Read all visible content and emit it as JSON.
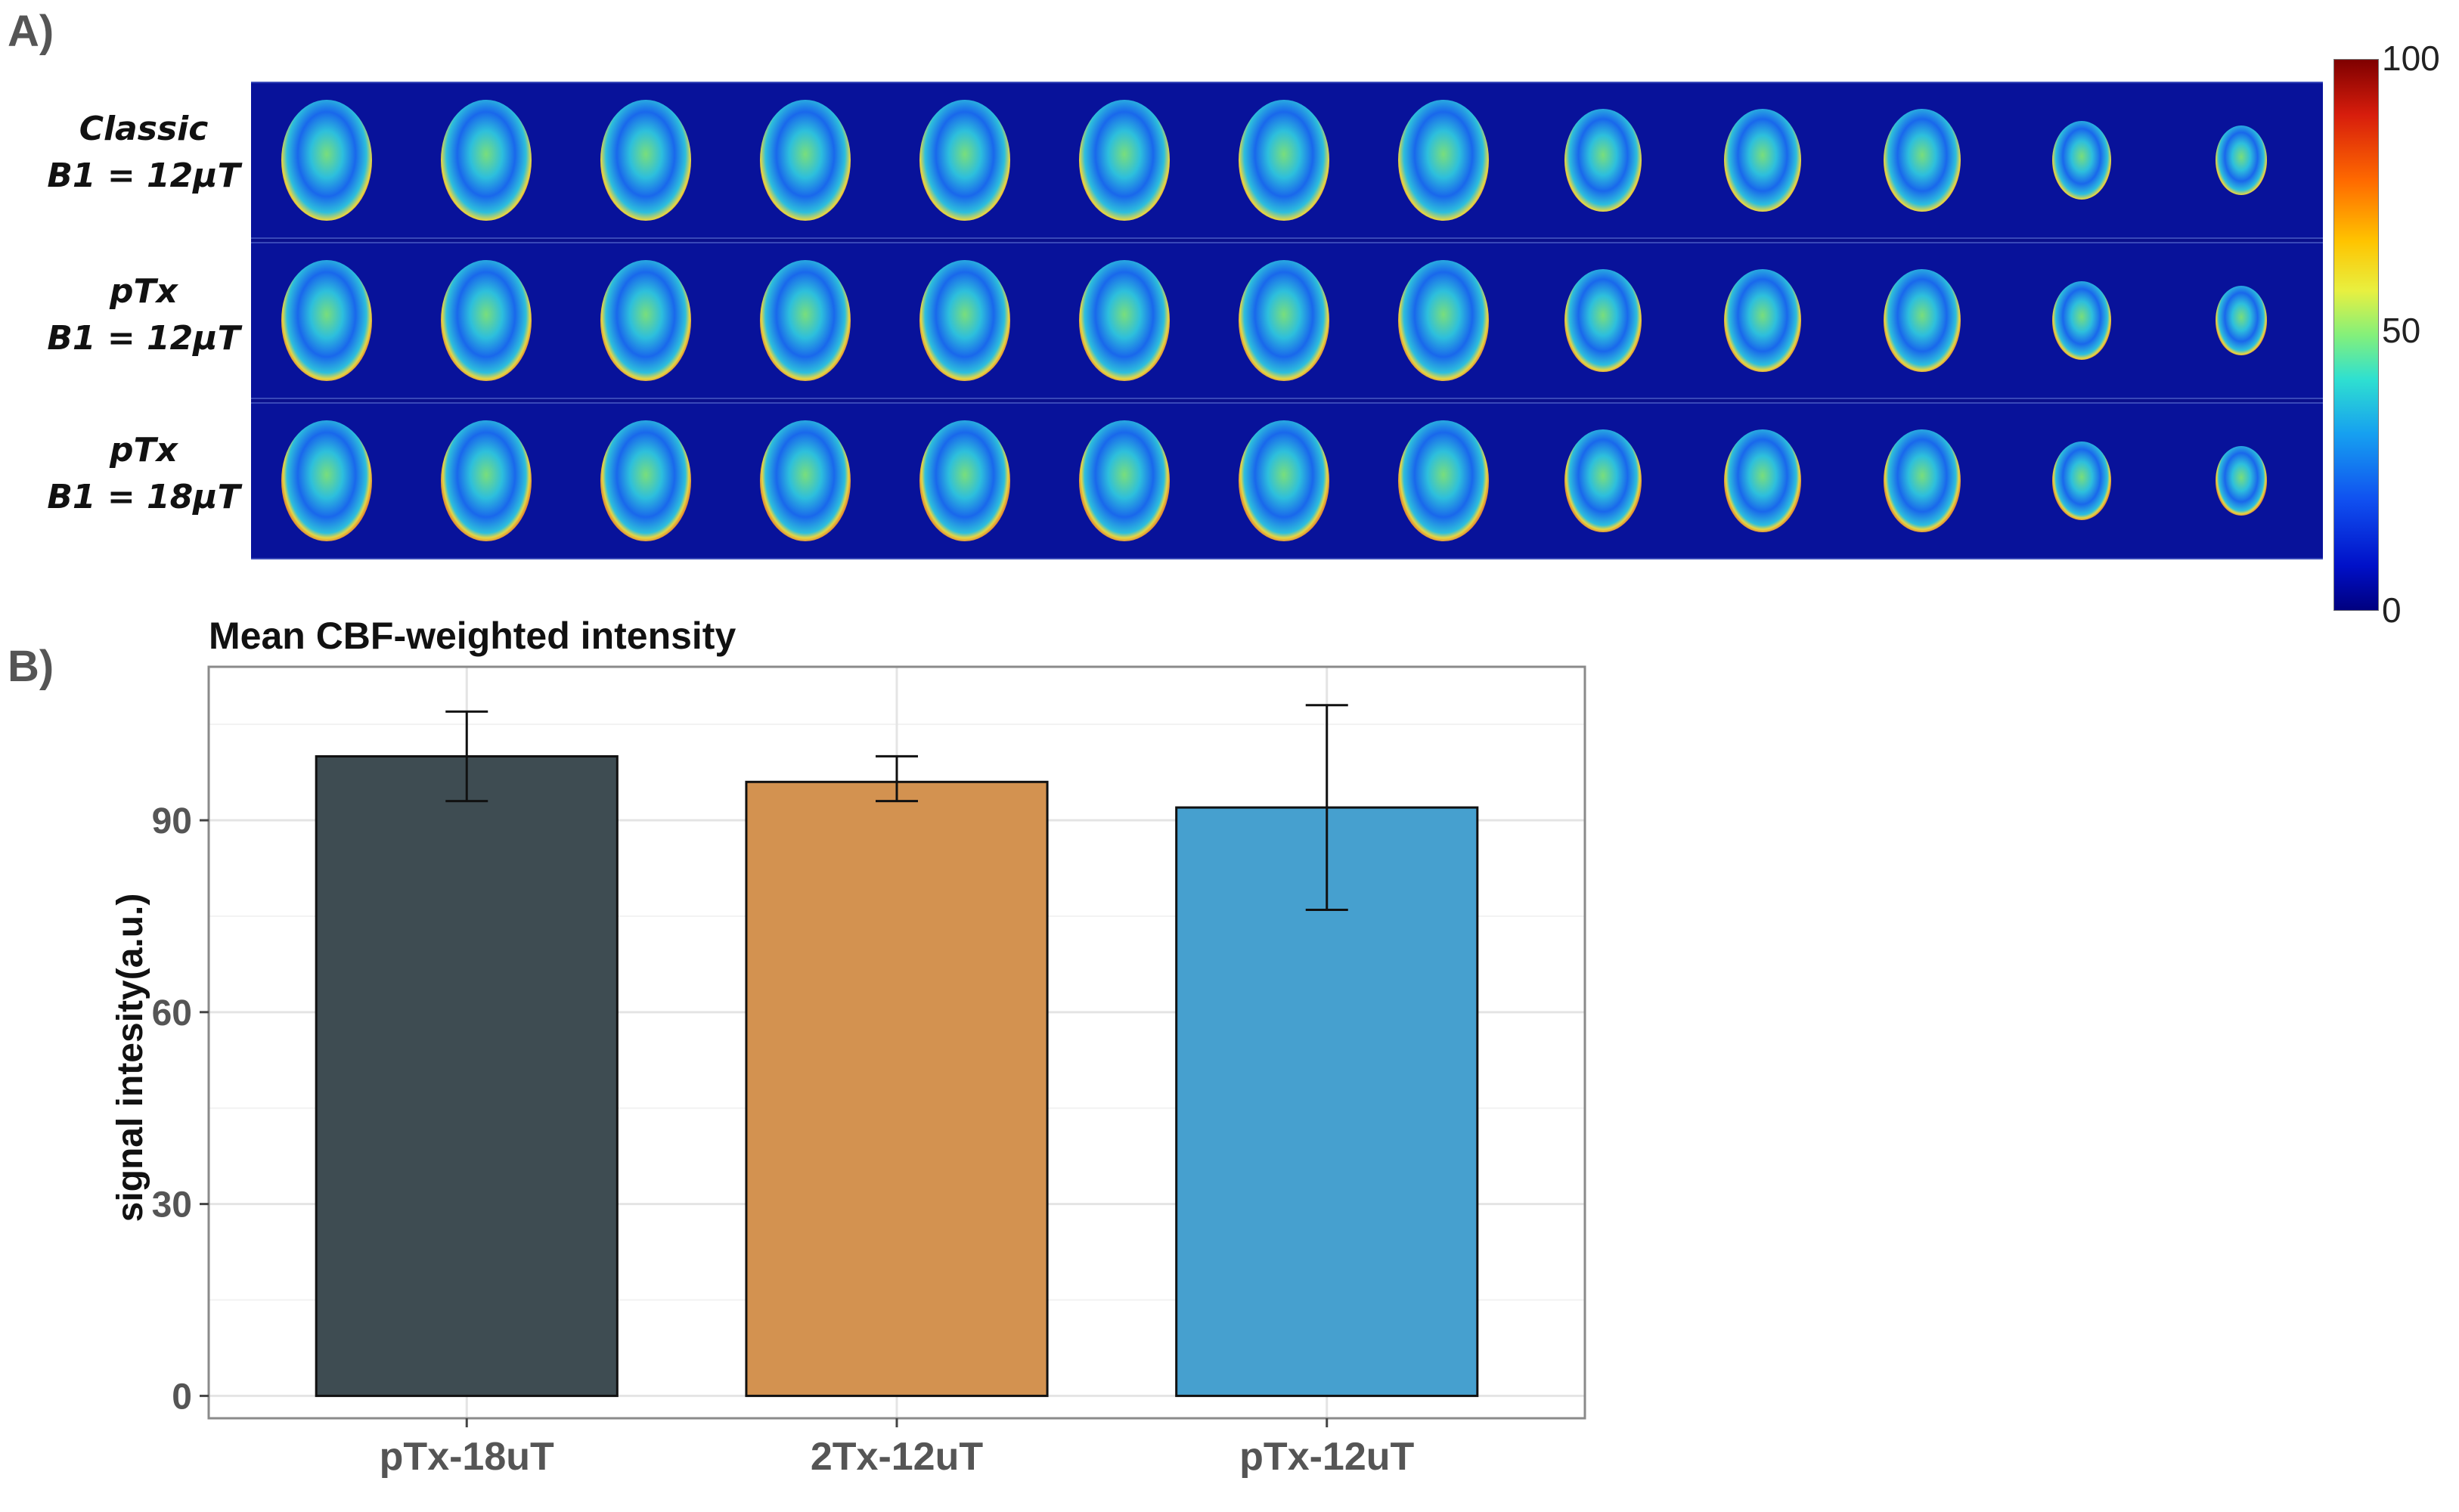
{
  "panel_a": {
    "label": "A)",
    "rows": [
      {
        "line1": "Classic",
        "line2": "B1 = 12μT"
      },
      {
        "line1": "pTx",
        "line2": "B1 = 12μT"
      },
      {
        "line1": "pTx",
        "line2": "B1 = 18μT"
      }
    ],
    "slices_per_row": 13,
    "colorbar": {
      "max": "100",
      "mid": "50",
      "min": "0"
    }
  },
  "panel_b": {
    "label": "B)"
  },
  "chart_data": {
    "type": "bar",
    "title": "Mean CBF-weighted intensity",
    "xlabel": "",
    "ylabel": "signal intesity(a.u.)",
    "categories": [
      "pTx-18uT",
      "2Tx-12uT",
      "pTx-12uT"
    ],
    "values": [
      100,
      96,
      92
    ],
    "error_low": [
      93,
      93,
      76
    ],
    "error_high": [
      107,
      100,
      108
    ],
    "colors": [
      "#3e4c52",
      "#d39250",
      "#46a0cf"
    ],
    "ylim": [
      -3.5,
      114
    ],
    "yticks": [
      0,
      30,
      60,
      90
    ],
    "ytick_labels": [
      "0",
      "30",
      "60",
      "90"
    ],
    "grid": true
  }
}
